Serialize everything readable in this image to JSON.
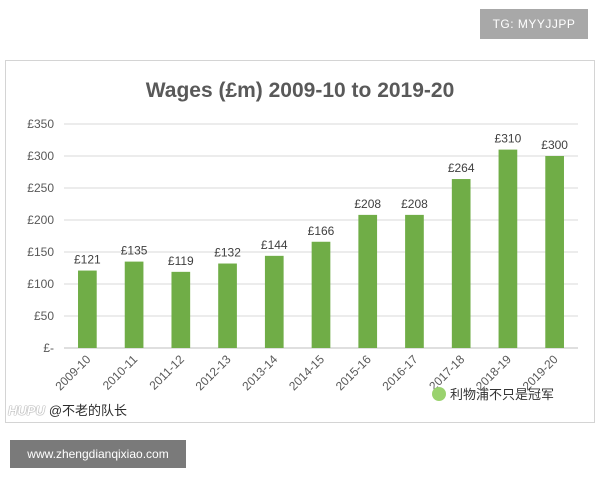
{
  "tg_badge": "TG: MYYJJPP",
  "chart_data": {
    "type": "bar",
    "title": "Wages (£m) 2009-10 to 2019-20",
    "xlabel": "",
    "ylabel": "",
    "categories": [
      "2009-10",
      "2010-11",
      "2011-12",
      "2012-13",
      "2013-14",
      "2014-15",
      "2015-16",
      "2016-17",
      "2017-18",
      "2018-19",
      "2019-20"
    ],
    "values": [
      121,
      135,
      119,
      132,
      144,
      166,
      208,
      208,
      264,
      310,
      300
    ],
    "data_labels": [
      "£121",
      "£135",
      "£119",
      "£132",
      "£144",
      "£166",
      "£208",
      "£208",
      "£264",
      "£310",
      "£300"
    ],
    "ylim": [
      0,
      350
    ],
    "yticks": [
      0,
      50,
      100,
      150,
      200,
      250,
      300,
      350
    ],
    "ytick_labels": [
      "£-",
      "£50",
      "£100",
      "£150",
      "£200",
      "£250",
      "£300",
      "£350"
    ],
    "bar_color": "#70ad47",
    "grid": true,
    "legend": "none"
  },
  "watermark_left": {
    "brand": "HUPU",
    "handle": "@不老的队长"
  },
  "watermark_right": {
    "text": "利物浦不只是冠军"
  },
  "site_badge": "www.zhengdianqixiao.com"
}
